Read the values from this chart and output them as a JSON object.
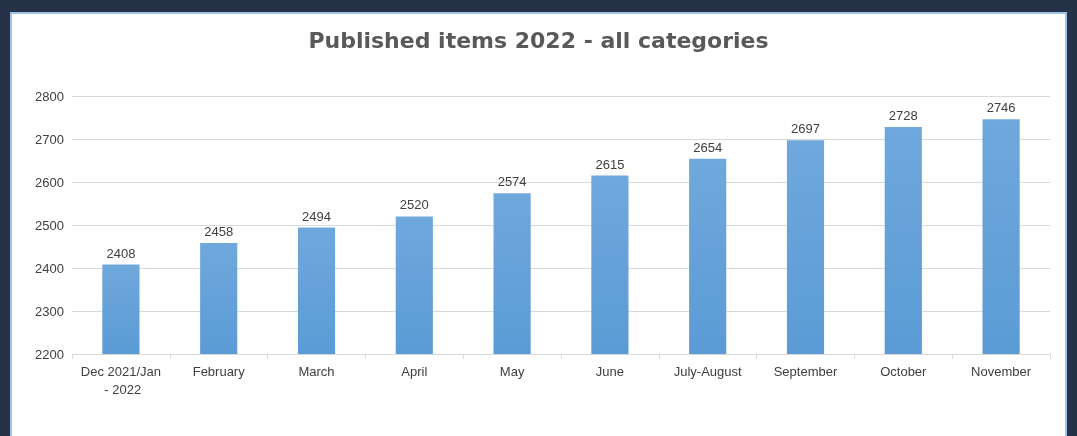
{
  "chart_data": {
    "type": "bar",
    "title": "Published items 2022 - all categories",
    "categories": [
      "Dec 2021/Jan - 2022",
      "February",
      "March",
      "April",
      "May",
      "June",
      "July-August",
      "September",
      "October",
      "November"
    ],
    "values": [
      2408,
      2458,
      2494,
      2520,
      2574,
      2615,
      2654,
      2697,
      2728,
      2746
    ],
    "color": "#5b9bd5",
    "ylim": [
      2200,
      2800
    ],
    "yticks": [
      2200,
      2300,
      2400,
      2500,
      2600,
      2700,
      2800
    ],
    "grid": "y",
    "data_labels": true
  }
}
